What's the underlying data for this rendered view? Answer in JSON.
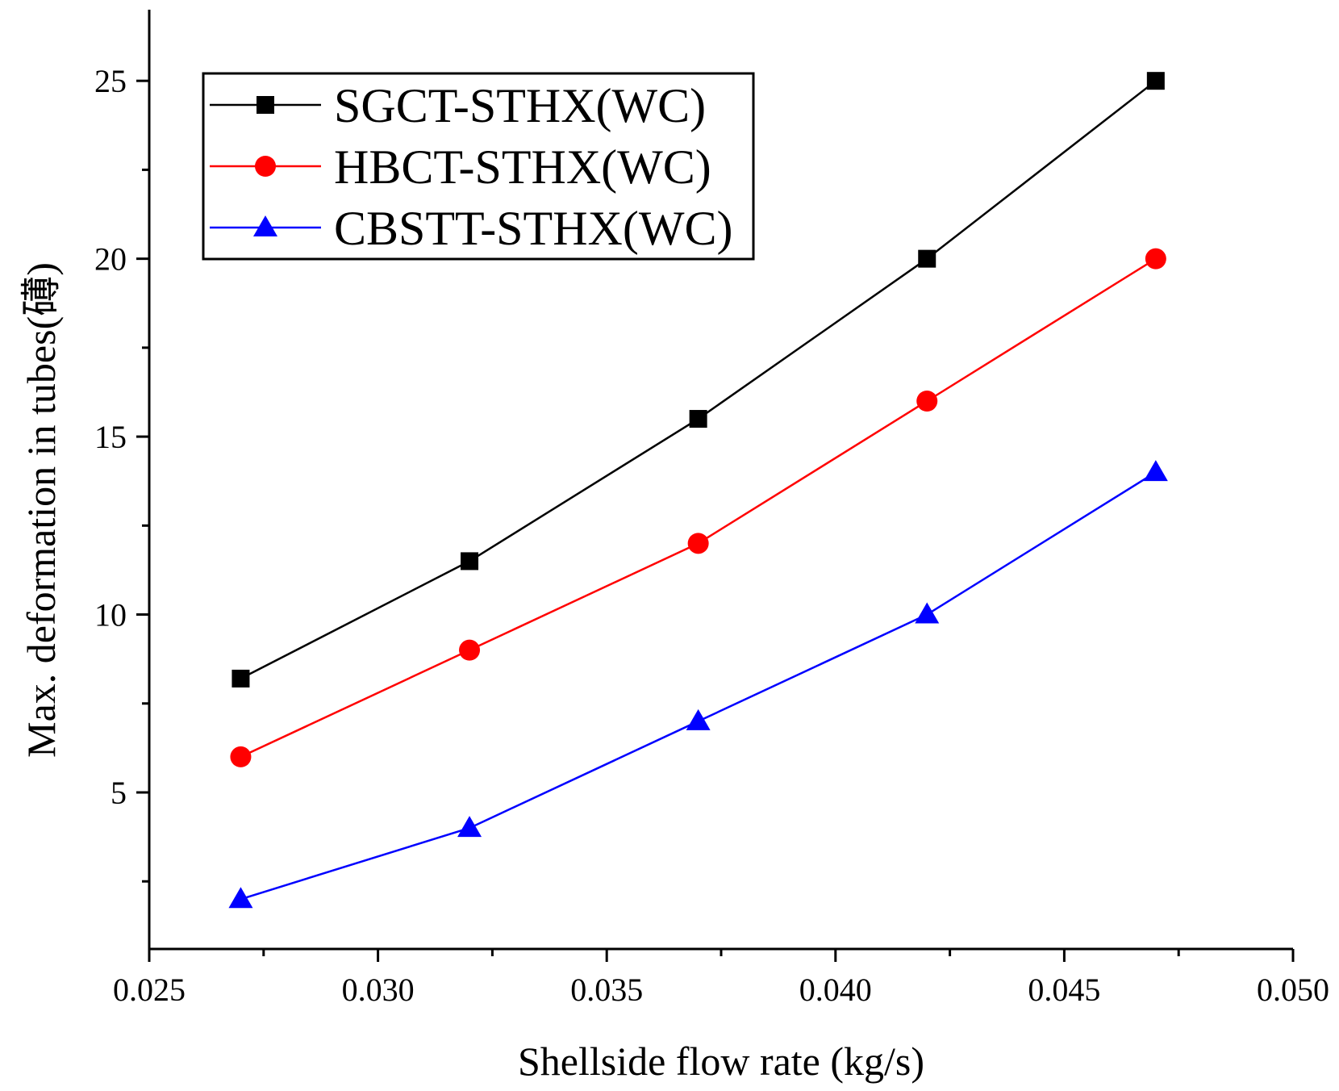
{
  "chart_data": {
    "type": "line",
    "xlabel": "Shellside flow rate (kg/s)",
    "ylabel": "Max. deformation in tubes(礡)",
    "xlim": [
      0.025,
      0.05
    ],
    "ylim": [
      0.6,
      27.0
    ],
    "x_ticks": [
      0.025,
      0.03,
      0.035,
      0.04,
      0.045,
      0.05
    ],
    "x_tick_labels": [
      "0.025",
      "0.030",
      "0.035",
      "0.040",
      "0.045",
      "0.050"
    ],
    "y_ticks": [
      5,
      10,
      15,
      20,
      25
    ],
    "y_tick_labels": [
      "5",
      "10",
      "15",
      "20",
      "25"
    ],
    "grid": false,
    "legend_position": "top-left",
    "x": [
      0.027,
      0.032,
      0.037,
      0.042,
      0.047
    ],
    "series": [
      {
        "name": "SGCT-STHX(WC)",
        "values": [
          8.2,
          11.5,
          15.5,
          20.0,
          25.0
        ],
        "color": "#000000",
        "marker": "square"
      },
      {
        "name": "HBCT-STHX(WC)",
        "values": [
          6.0,
          9.0,
          12.0,
          16.0,
          20.0
        ],
        "color": "#ff0000",
        "marker": "circle"
      },
      {
        "name": "CBSTT-STHX(WC)",
        "values": [
          2.0,
          4.0,
          7.0,
          10.0,
          14.0
        ],
        "color": "#0000ff",
        "marker": "triangle"
      }
    ]
  }
}
